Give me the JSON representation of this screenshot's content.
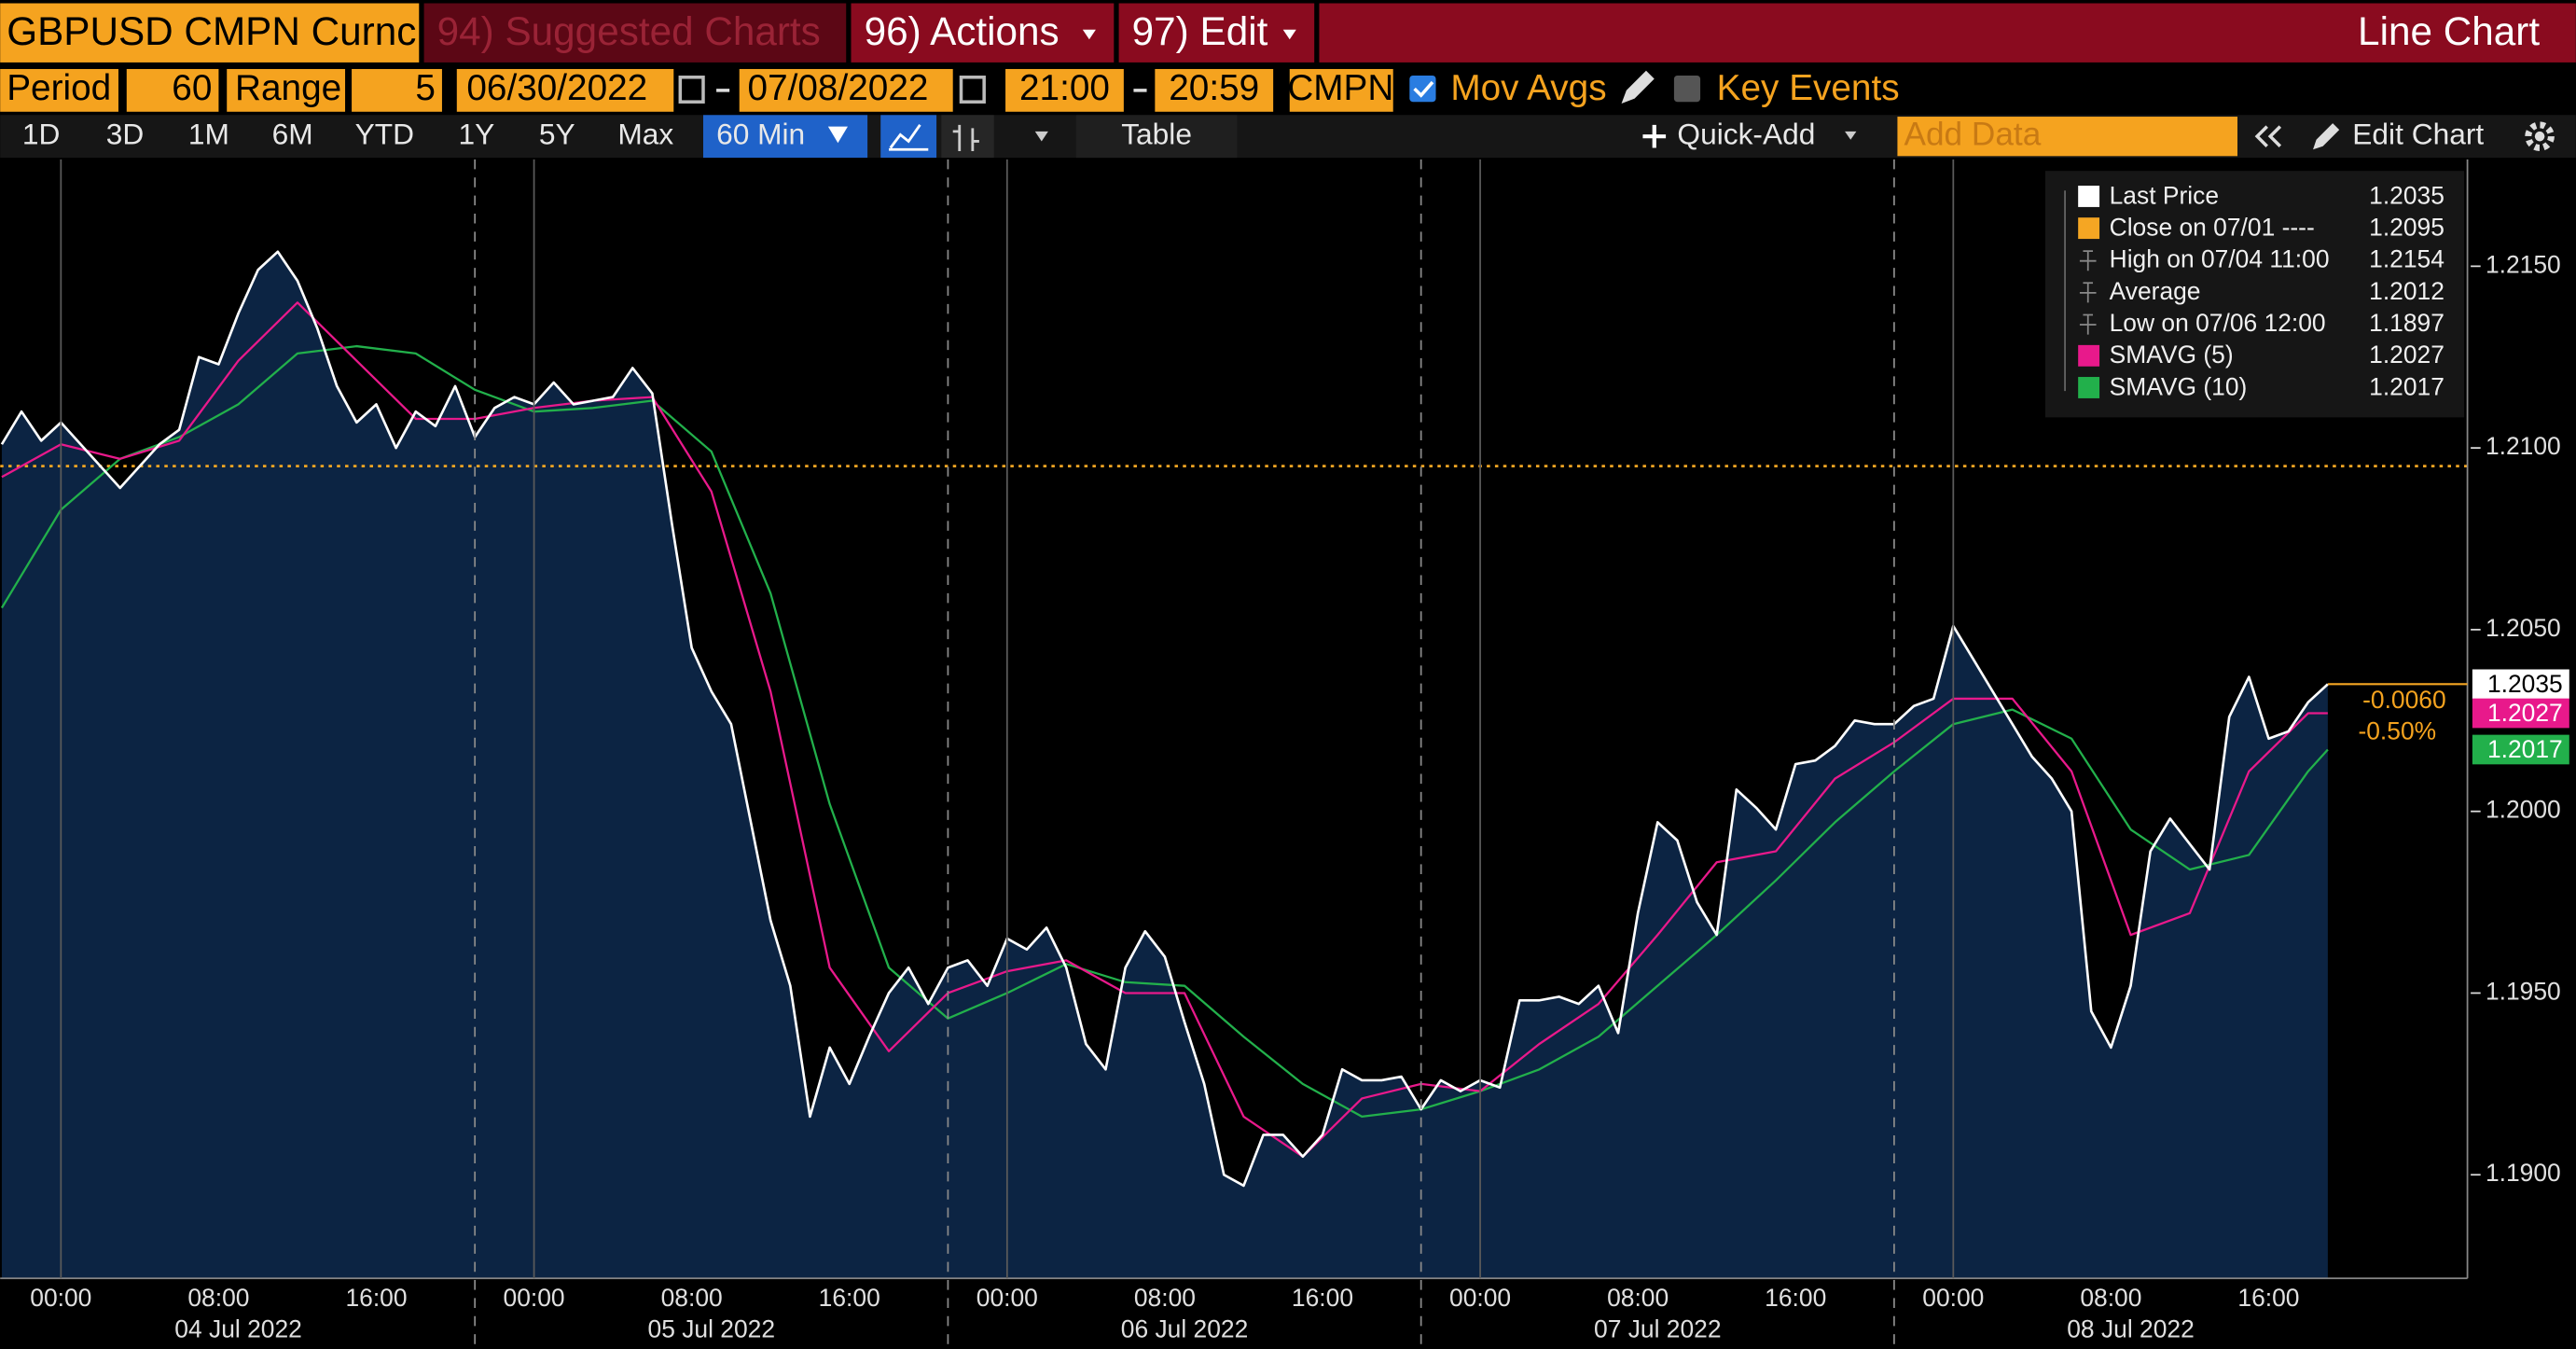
{
  "toolbar": {
    "security": "GBPUSD CMPN Curnc",
    "suggested": "94) Suggested Charts",
    "actions": "96) Actions",
    "edit": "97) Edit",
    "chart_type": "Line Chart",
    "period_label": "Period",
    "period": "60",
    "range_label": "Range",
    "range": "5",
    "start_date": "06/30/2022",
    "end_date": "07/08/2022",
    "start_time": "21:00",
    "end_time": "20:59",
    "source": "CMPN",
    "mov_avgs": "Mov Avgs",
    "key_events": "Key Events",
    "ranges": [
      "1D",
      "3D",
      "1M",
      "6M",
      "YTD",
      "1Y",
      "5Y",
      "Max"
    ],
    "interval": "60 Min",
    "table": "Table",
    "quick_add": "Quick-Add",
    "add_data": "Add Data",
    "edit_chart": "Edit Chart"
  },
  "chart_data": {
    "type": "line",
    "xlim": [
      "2022-07-03 20:55",
      "2022-07-09 02:05"
    ],
    "ylim": [
      1.18715,
      1.21794
    ],
    "yticks": [
      {
        "value": 1.19,
        "label": "1.1900"
      },
      {
        "value": 1.195,
        "label": "1.1950"
      },
      {
        "value": 1.2,
        "label": "1.2000"
      },
      {
        "value": 1.205,
        "label": "1.2050"
      },
      {
        "value": 1.21,
        "label": "1.2100"
      },
      {
        "value": 1.215,
        "label": "1.2150"
      }
    ],
    "xticks": [
      {
        "value": "2022-07-04 00:00",
        "label": "00:00"
      },
      {
        "value": "2022-07-04 08:00",
        "label": "08:00"
      },
      {
        "value": "2022-07-04 16:00",
        "label": "16:00"
      },
      {
        "value": "2022-07-05 00:00",
        "label": "00:00"
      },
      {
        "value": "2022-07-05 08:00",
        "label": "08:00"
      },
      {
        "value": "2022-07-05 16:00",
        "label": "16:00"
      },
      {
        "value": "2022-07-06 00:00",
        "label": "00:00"
      },
      {
        "value": "2022-07-06 08:00",
        "label": "08:00"
      },
      {
        "value": "2022-07-06 16:00",
        "label": "16:00"
      },
      {
        "value": "2022-07-07 00:00",
        "label": "00:00"
      },
      {
        "value": "2022-07-07 08:00",
        "label": "08:00"
      },
      {
        "value": "2022-07-07 16:00",
        "label": "16:00"
      },
      {
        "value": "2022-07-08 00:00",
        "label": "00:00"
      },
      {
        "value": "2022-07-08 08:00",
        "label": "08:00"
      },
      {
        "value": "2022-07-08 16:00",
        "label": "16:00"
      }
    ],
    "date_labels": [
      {
        "value": "2022-07-04 09:00",
        "label": "04 Jul 2022"
      },
      {
        "value": "2022-07-05 09:00",
        "label": "05 Jul 2022"
      },
      {
        "value": "2022-07-06 09:00",
        "label": "06 Jul 2022"
      },
      {
        "value": "2022-07-07 09:00",
        "label": "07 Jul 2022"
      },
      {
        "value": "2022-07-08 09:00",
        "label": "08 Jul 2022"
      }
    ],
    "session_breaks": [
      "2022-07-04 21:00",
      "2022-07-05 21:00",
      "2022-07-06 21:00",
      "2022-07-07 21:00"
    ],
    "series": [
      {
        "name": "Last Price",
        "color": "#ffffff",
        "fill": "#0c2443",
        "value": 1.2035,
        "x": [
          "2022-07-03 21:00",
          "2022-07-03 22:00",
          "2022-07-03 23:00",
          "2022-07-04 00:00",
          "2022-07-04 01:00",
          "2022-07-04 02:00",
          "2022-07-04 03:00",
          "2022-07-04 04:00",
          "2022-07-04 05:00",
          "2022-07-04 06:00",
          "2022-07-04 07:00",
          "2022-07-04 08:00",
          "2022-07-04 09:00",
          "2022-07-04 10:00",
          "2022-07-04 11:00",
          "2022-07-04 12:00",
          "2022-07-04 13:00",
          "2022-07-04 14:00",
          "2022-07-04 15:00",
          "2022-07-04 16:00",
          "2022-07-04 17:00",
          "2022-07-04 18:00",
          "2022-07-04 19:00",
          "2022-07-04 20:00",
          "2022-07-04 21:00",
          "2022-07-04 22:00",
          "2022-07-04 23:00",
          "2022-07-05 00:00",
          "2022-07-05 01:00",
          "2022-07-05 02:00",
          "2022-07-05 03:00",
          "2022-07-05 04:00",
          "2022-07-05 05:00",
          "2022-07-05 06:00",
          "2022-07-05 07:00",
          "2022-07-05 08:00",
          "2022-07-05 09:00",
          "2022-07-05 10:00",
          "2022-07-05 11:00",
          "2022-07-05 12:00",
          "2022-07-05 13:00",
          "2022-07-05 14:00",
          "2022-07-05 15:00",
          "2022-07-05 16:00",
          "2022-07-05 17:00",
          "2022-07-05 18:00",
          "2022-07-05 19:00",
          "2022-07-05 20:00",
          "2022-07-05 21:00",
          "2022-07-05 22:00",
          "2022-07-05 23:00",
          "2022-07-06 00:00",
          "2022-07-06 01:00",
          "2022-07-06 02:00",
          "2022-07-06 03:00",
          "2022-07-06 04:00",
          "2022-07-06 05:00",
          "2022-07-06 06:00",
          "2022-07-06 07:00",
          "2022-07-06 08:00",
          "2022-07-06 09:00",
          "2022-07-06 10:00",
          "2022-07-06 11:00",
          "2022-07-06 12:00",
          "2022-07-06 13:00",
          "2022-07-06 14:00",
          "2022-07-06 15:00",
          "2022-07-06 16:00",
          "2022-07-06 17:00",
          "2022-07-06 18:00",
          "2022-07-06 19:00",
          "2022-07-06 20:00",
          "2022-07-06 21:00",
          "2022-07-06 22:00",
          "2022-07-06 23:00",
          "2022-07-07 00:00",
          "2022-07-07 01:00",
          "2022-07-07 02:00",
          "2022-07-07 03:00",
          "2022-07-07 04:00",
          "2022-07-07 05:00",
          "2022-07-07 06:00",
          "2022-07-07 07:00",
          "2022-07-07 08:00",
          "2022-07-07 09:00",
          "2022-07-07 10:00",
          "2022-07-07 11:00",
          "2022-07-07 12:00",
          "2022-07-07 13:00",
          "2022-07-07 14:00",
          "2022-07-07 15:00",
          "2022-07-07 16:00",
          "2022-07-07 17:00",
          "2022-07-07 18:00",
          "2022-07-07 19:00",
          "2022-07-07 20:00",
          "2022-07-07 21:00",
          "2022-07-07 22:00",
          "2022-07-07 23:00",
          "2022-07-08 00:00",
          "2022-07-08 01:00",
          "2022-07-08 02:00",
          "2022-07-08 03:00",
          "2022-07-08 04:00",
          "2022-07-08 05:00",
          "2022-07-08 06:00",
          "2022-07-08 07:00",
          "2022-07-08 08:00",
          "2022-07-08 09:00",
          "2022-07-08 10:00",
          "2022-07-08 11:00",
          "2022-07-08 12:00",
          "2022-07-08 13:00",
          "2022-07-08 14:00",
          "2022-07-08 15:00",
          "2022-07-08 16:00",
          "2022-07-08 17:00",
          "2022-07-08 18:00",
          "2022-07-08 19:00"
        ],
        "values": [
          1.2101,
          1.211,
          1.2102,
          1.2107,
          1.2101,
          1.2095,
          1.2089,
          1.2095,
          1.2101,
          1.2105,
          1.2125,
          1.2123,
          1.2137,
          1.2149,
          1.2154,
          1.2146,
          1.2133,
          1.2117,
          1.2107,
          1.2112,
          1.21,
          1.211,
          1.2106,
          1.2117,
          1.2103,
          1.2111,
          1.2114,
          1.2112,
          1.2118,
          1.2112,
          1.2113,
          1.2114,
          1.2122,
          1.2115,
          1.2079,
          1.2045,
          1.2033,
          1.2024,
          1.1997,
          1.197,
          1.1952,
          1.1916,
          1.1935,
          1.1925,
          1.1938,
          1.195,
          1.1957,
          1.1947,
          1.1957,
          1.1959,
          1.1952,
          1.1965,
          1.1962,
          1.1968,
          1.1957,
          1.1936,
          1.1929,
          1.1957,
          1.1967,
          1.196,
          1.1942,
          1.1925,
          1.19,
          1.1897,
          1.1911,
          1.1911,
          1.1905,
          1.1911,
          1.1929,
          1.1926,
          1.1926,
          1.1927,
          1.1918,
          1.1926,
          1.1923,
          1.1926,
          1.1924,
          1.1948,
          1.1948,
          1.1949,
          1.1947,
          1.1952,
          1.1939,
          1.1972,
          1.1997,
          1.1992,
          1.1975,
          1.1966,
          1.2006,
          1.2001,
          1.1995,
          1.2013,
          1.2014,
          1.2018,
          1.2025,
          1.2024,
          1.2024,
          1.2029,
          1.2031,
          1.2051,
          1.2042,
          1.2033,
          1.2024,
          1.2015,
          1.2009,
          1.2,
          1.1945,
          1.1935,
          1.1952,
          1.1989,
          1.1998,
          1.1991,
          1.1984,
          1.2026,
          1.2037,
          1.202,
          1.2022,
          1.203,
          1.2035
        ]
      },
      {
        "name": "SMAVG (5)",
        "color": "#e8198b",
        "value": 1.2027,
        "x": [
          "2022-07-03 21:00",
          "2022-07-04 00:00",
          "2022-07-04 03:00",
          "2022-07-04 06:00",
          "2022-07-04 09:00",
          "2022-07-04 12:00",
          "2022-07-04 15:00",
          "2022-07-04 18:00",
          "2022-07-04 21:00",
          "2022-07-05 00:00",
          "2022-07-05 03:00",
          "2022-07-05 06:00",
          "2022-07-05 09:00",
          "2022-07-05 12:00",
          "2022-07-05 15:00",
          "2022-07-05 18:00",
          "2022-07-05 21:00",
          "2022-07-06 00:00",
          "2022-07-06 03:00",
          "2022-07-06 06:00",
          "2022-07-06 09:00",
          "2022-07-06 12:00",
          "2022-07-06 15:00",
          "2022-07-06 18:00",
          "2022-07-06 21:00",
          "2022-07-07 00:00",
          "2022-07-07 03:00",
          "2022-07-07 06:00",
          "2022-07-07 09:00",
          "2022-07-07 12:00",
          "2022-07-07 15:00",
          "2022-07-07 18:00",
          "2022-07-07 21:00",
          "2022-07-08 00:00",
          "2022-07-08 03:00",
          "2022-07-08 06:00",
          "2022-07-08 09:00",
          "2022-07-08 12:00",
          "2022-07-08 15:00",
          "2022-07-08 18:00",
          "2022-07-08 19:00"
        ],
        "values": [
          1.2092,
          1.2101,
          1.2097,
          1.2102,
          1.2124,
          1.214,
          1.2124,
          1.2108,
          1.2108,
          1.2111,
          1.2113,
          1.2114,
          1.2088,
          1.2033,
          1.1957,
          1.1934,
          1.195,
          1.1956,
          1.1959,
          1.195,
          1.195,
          1.1916,
          1.1905,
          1.1921,
          1.1925,
          1.1923,
          1.1936,
          1.1947,
          1.1966,
          1.1986,
          1.1989,
          1.2009,
          1.2019,
          1.2031,
          1.2031,
          1.2011,
          1.1966,
          1.1972,
          1.2011,
          1.2027,
          1.2027
        ]
      },
      {
        "name": "SMAVG (10)",
        "color": "#22b04b",
        "value": 1.2017,
        "x": [
          "2022-07-03 21:00",
          "2022-07-04 00:00",
          "2022-07-04 03:00",
          "2022-07-04 06:00",
          "2022-07-04 09:00",
          "2022-07-04 12:00",
          "2022-07-04 15:00",
          "2022-07-04 18:00",
          "2022-07-04 21:00",
          "2022-07-05 00:00",
          "2022-07-05 03:00",
          "2022-07-05 06:00",
          "2022-07-05 09:00",
          "2022-07-05 12:00",
          "2022-07-05 15:00",
          "2022-07-05 18:00",
          "2022-07-05 21:00",
          "2022-07-06 00:00",
          "2022-07-06 03:00",
          "2022-07-06 06:00",
          "2022-07-06 09:00",
          "2022-07-06 12:00",
          "2022-07-06 15:00",
          "2022-07-06 18:00",
          "2022-07-06 21:00",
          "2022-07-07 00:00",
          "2022-07-07 03:00",
          "2022-07-07 06:00",
          "2022-07-07 09:00",
          "2022-07-07 12:00",
          "2022-07-07 15:00",
          "2022-07-07 18:00",
          "2022-07-07 21:00",
          "2022-07-08 00:00",
          "2022-07-08 03:00",
          "2022-07-08 06:00",
          "2022-07-08 09:00",
          "2022-07-08 12:00",
          "2022-07-08 15:00",
          "2022-07-08 18:00",
          "2022-07-08 19:00"
        ],
        "values": [
          1.2056,
          1.2083,
          1.2097,
          1.2103,
          1.2112,
          1.2126,
          1.2128,
          1.2126,
          1.2116,
          1.211,
          1.2111,
          1.2113,
          1.2099,
          1.206,
          1.2002,
          1.1957,
          1.1943,
          1.195,
          1.1958,
          1.1953,
          1.1952,
          1.1938,
          1.1925,
          1.1916,
          1.1918,
          1.1923,
          1.1929,
          1.1938,
          1.1952,
          1.1966,
          1.1981,
          1.1997,
          1.2011,
          1.2024,
          1.2028,
          1.202,
          1.1995,
          1.1984,
          1.1988,
          1.2011,
          1.2017
        ]
      }
    ],
    "stats": [
      {
        "name": "Close on 07/01 ----",
        "value": 1.2095,
        "color": "#f5a623"
      },
      {
        "name": "High on 07/04 11:00",
        "value": 1.2154
      },
      {
        "name": "Average",
        "value": 1.2012
      },
      {
        "name": "Low on 07/06 12:00",
        "value": 1.1897
      }
    ],
    "change": "-0.0060",
    "change_pct": "-0.50%"
  }
}
